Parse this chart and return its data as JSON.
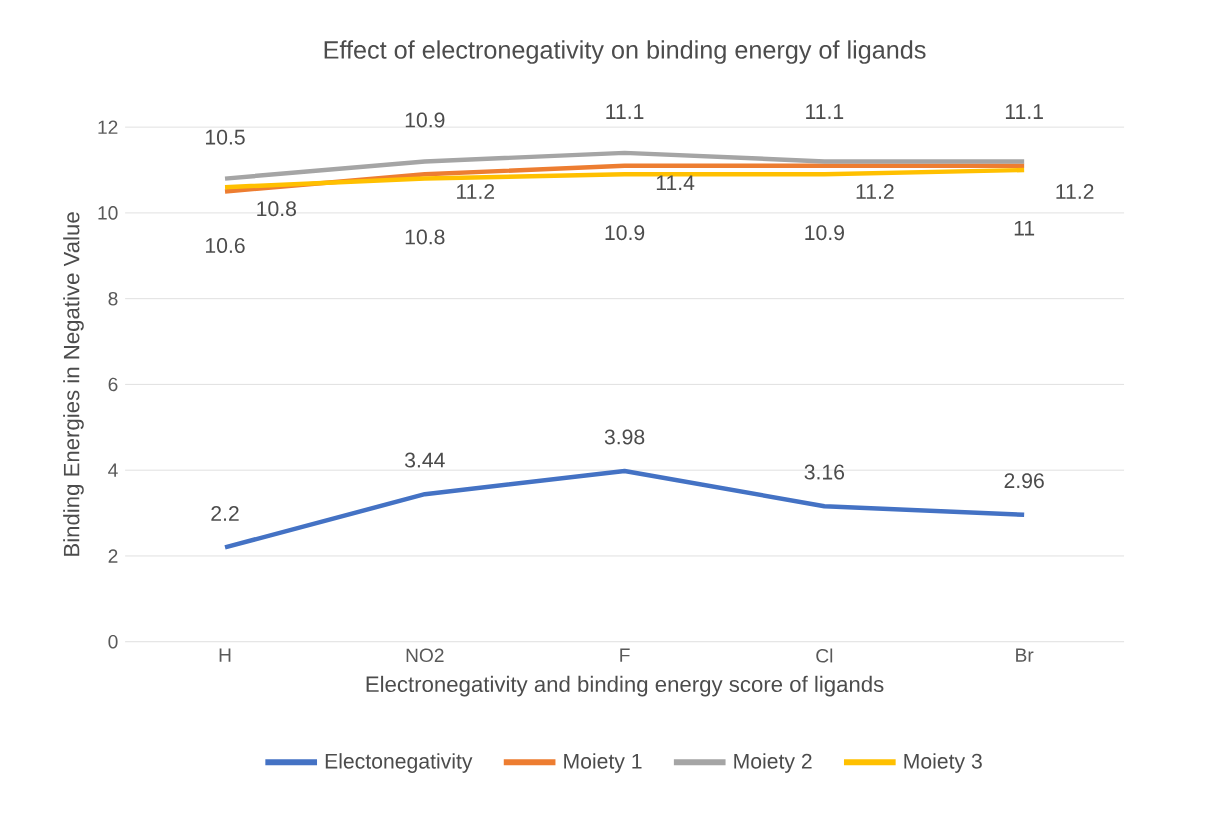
{
  "chart_data": {
    "type": "line",
    "title": "Effect of electronegativity on binding energy of ligands",
    "xlabel": "Electronegativity and binding energy score of ligands",
    "ylabel": "Binding Energies in Negative Value",
    "categories": [
      "H",
      "NO2",
      "F",
      "Cl",
      "Br"
    ],
    "series": [
      {
        "name": "Electonegativity",
        "color": "#4472c4",
        "values": [
          2.2,
          3.44,
          3.98,
          3.16,
          2.96
        ]
      },
      {
        "name": "Moiety 1",
        "color": "#ed7d31",
        "values": [
          10.5,
          10.9,
          11.1,
          11.1,
          11.1
        ]
      },
      {
        "name": "Moiety 2",
        "color": "#a5a5a5",
        "values": [
          10.8,
          11.2,
          11.4,
          11.2,
          11.2
        ]
      },
      {
        "name": "Moiety 3",
        "color": "#ffc000",
        "values": [
          10.6,
          10.8,
          10.9,
          10.9,
          11
        ]
      }
    ],
    "ylim": [
      0,
      12
    ],
    "yticks": [
      0,
      2,
      4,
      6,
      8,
      10,
      12
    ],
    "grid": "y",
    "legend": "bottom",
    "data_labels": true,
    "marker": "none",
    "line_style": "solid"
  }
}
